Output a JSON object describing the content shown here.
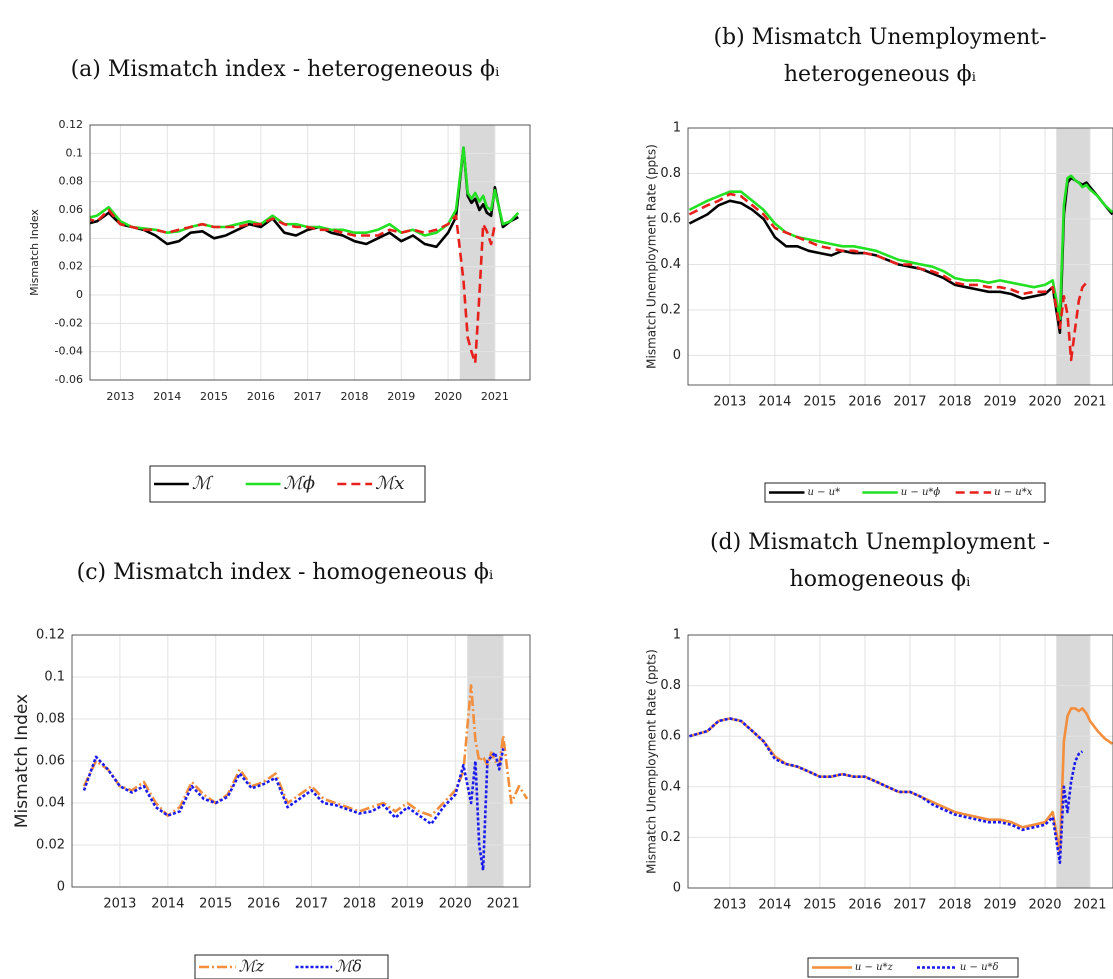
{
  "chart_data": [
    {
      "type": "line",
      "title": [
        "(a) Mismatch index - heterogeneous ϕᵢ"
      ],
      "y_label": "Mismatch Index",
      "x": [
        2012.25,
        2012.5,
        2012.75,
        2013,
        2013.25,
        2013.5,
        2013.75,
        2014,
        2014.25,
        2014.5,
        2014.75,
        2015,
        2015.25,
        2015.5,
        2015.75,
        2016,
        2016.25,
        2016.5,
        2016.75,
        2017,
        2017.25,
        2017.5,
        2017.75,
        2018,
        2018.25,
        2018.5,
        2018.75,
        2019,
        2019.25,
        2019.5,
        2019.75,
        2020,
        2020.17,
        2020.33,
        2020.42,
        2020.5,
        2020.58,
        2020.67,
        2020.75,
        2020.83,
        2020.92,
        2021,
        2021.17,
        2021.33,
        2021.5
      ],
      "xlim": [
        2012.35,
        2021.75
      ],
      "xticks": [
        2013,
        2014,
        2015,
        2016,
        2017,
        2018,
        2019,
        2020,
        2021
      ],
      "ylim": [
        -0.06,
        0.12
      ],
      "yticks": [
        -0.06,
        -0.04,
        -0.02,
        0,
        0.02,
        0.04,
        0.06,
        0.08,
        0.1,
        0.12
      ],
      "grid": true,
      "shaded_period": [
        2020.25,
        2021.0
      ],
      "series": [
        {
          "name": "ℳ",
          "color": "#000000",
          "dash": "solid",
          "values": [
            0.05,
            0.052,
            0.058,
            0.05,
            0.048,
            0.046,
            0.042,
            0.036,
            0.038,
            0.044,
            0.045,
            0.04,
            0.042,
            0.046,
            0.05,
            0.048,
            0.054,
            0.044,
            0.042,
            0.046,
            0.048,
            0.044,
            0.042,
            0.038,
            0.036,
            0.04,
            0.044,
            0.038,
            0.042,
            0.036,
            0.034,
            0.044,
            0.055,
            0.104,
            0.07,
            0.065,
            0.068,
            0.06,
            0.064,
            0.058,
            0.056,
            0.076,
            0.048,
            0.052,
            0.055
          ]
        },
        {
          "name": "ℳϕ",
          "color": "#22e022",
          "dash": "solid",
          "values": [
            0.054,
            0.056,
            0.062,
            0.052,
            0.048,
            0.047,
            0.046,
            0.044,
            0.045,
            0.048,
            0.05,
            0.048,
            0.048,
            0.05,
            0.052,
            0.05,
            0.056,
            0.05,
            0.05,
            0.048,
            0.048,
            0.046,
            0.046,
            0.044,
            0.044,
            0.046,
            0.05,
            0.044,
            0.046,
            0.042,
            0.044,
            0.05,
            0.06,
            0.104,
            0.072,
            0.068,
            0.072,
            0.066,
            0.07,
            0.062,
            0.06,
            0.074,
            0.05,
            0.052,
            0.058
          ]
        },
        {
          "name": "ℳx",
          "color": "#e8201c",
          "dash": "dashed",
          "values": [
            0.054,
            0.052,
            0.06,
            0.05,
            0.048,
            0.046,
            0.046,
            0.044,
            0.046,
            0.048,
            0.05,
            0.048,
            0.048,
            0.048,
            0.05,
            0.05,
            0.054,
            0.05,
            0.048,
            0.048,
            0.046,
            0.046,
            0.044,
            0.042,
            0.042,
            0.042,
            0.046,
            0.044,
            0.046,
            0.044,
            0.046,
            0.05,
            0.056,
            0.01,
            -0.03,
            -0.04,
            -0.048,
            0.0,
            0.05,
            0.045,
            0.036,
            0.05,
            null,
            null,
            null
          ]
        }
      ]
    },
    {
      "type": "line",
      "title": [
        "(b) Mismatch Unemployment-",
        "heterogeneous ϕᵢ"
      ],
      "y_label": "Mismatch Unemployment Rate (ppts)",
      "x": [
        2012.1,
        2012.5,
        2012.75,
        2013,
        2013.25,
        2013.5,
        2013.75,
        2014,
        2014.25,
        2014.5,
        2014.75,
        2015,
        2015.25,
        2015.5,
        2015.75,
        2016,
        2016.25,
        2016.5,
        2016.75,
        2017,
        2017.25,
        2017.5,
        2017.75,
        2018,
        2018.25,
        2018.5,
        2018.75,
        2019,
        2019.25,
        2019.5,
        2019.75,
        2020,
        2020.17,
        2020.33,
        2020.42,
        2020.5,
        2020.58,
        2020.67,
        2020.75,
        2020.83,
        2020.92,
        2021,
        2021.17,
        2021.33,
        2021.5
      ],
      "xlim": [
        2012.07,
        2021.51
      ],
      "xticks": [
        2013,
        2014,
        2015,
        2016,
        2017,
        2018,
        2019,
        2020,
        2021
      ],
      "ylim": [
        -0.13,
        1
      ],
      "yticks": [
        0,
        0.2,
        0.4,
        0.6,
        0.8,
        1
      ],
      "grid": true,
      "shaded_period": [
        2020.25,
        2021.0
      ],
      "series": [
        {
          "name": "u − u*",
          "color": "#000000",
          "dash": "solid",
          "values": [
            0.58,
            0.62,
            0.66,
            0.68,
            0.67,
            0.64,
            0.6,
            0.52,
            0.48,
            0.48,
            0.46,
            0.45,
            0.44,
            0.46,
            0.45,
            0.45,
            0.44,
            0.42,
            0.4,
            0.39,
            0.38,
            0.36,
            0.34,
            0.31,
            0.3,
            0.29,
            0.28,
            0.28,
            0.27,
            0.25,
            0.26,
            0.27,
            0.3,
            0.1,
            0.62,
            0.76,
            0.78,
            0.77,
            0.76,
            0.75,
            0.76,
            0.74,
            0.7,
            0.66,
            0.62
          ]
        },
        {
          "name": "u − u*ϕ",
          "color": "#22e022",
          "dash": "solid",
          "values": [
            0.64,
            0.68,
            0.7,
            0.72,
            0.72,
            0.68,
            0.64,
            0.58,
            0.54,
            0.52,
            0.51,
            0.5,
            0.49,
            0.48,
            0.48,
            0.47,
            0.46,
            0.44,
            0.42,
            0.41,
            0.4,
            0.39,
            0.37,
            0.34,
            0.33,
            0.33,
            0.32,
            0.33,
            0.32,
            0.31,
            0.3,
            0.31,
            0.33,
            0.16,
            0.66,
            0.78,
            0.79,
            0.77,
            0.76,
            0.74,
            0.75,
            0.73,
            0.7,
            0.66,
            0.63
          ]
        },
        {
          "name": "u − u*x",
          "color": "#e8201c",
          "dash": "dashed",
          "values": [
            0.62,
            0.66,
            0.68,
            0.71,
            0.7,
            0.66,
            0.62,
            0.56,
            0.54,
            0.52,
            0.5,
            0.48,
            0.47,
            0.46,
            0.46,
            0.45,
            0.44,
            0.42,
            0.4,
            0.4,
            0.38,
            0.37,
            0.35,
            0.32,
            0.31,
            0.31,
            0.3,
            0.3,
            0.29,
            0.27,
            0.28,
            0.28,
            0.3,
            0.12,
            0.26,
            0.18,
            -0.02,
            0.12,
            0.24,
            0.3,
            0.32,
            null,
            null,
            null,
            null
          ]
        }
      ]
    },
    {
      "type": "line",
      "title": [
        "(c) Mismatch index - homogeneous ϕᵢ"
      ],
      "y_label": "Mismatch Index",
      "x": [
        2012.25,
        2012.5,
        2012.75,
        2013,
        2013.25,
        2013.5,
        2013.75,
        2014,
        2014.25,
        2014.5,
        2014.75,
        2015,
        2015.25,
        2015.5,
        2015.75,
        2016,
        2016.25,
        2016.5,
        2016.75,
        2017,
        2017.25,
        2017.5,
        2017.75,
        2018,
        2018.25,
        2018.5,
        2018.75,
        2019,
        2019.25,
        2019.5,
        2019.75,
        2020,
        2020.17,
        2020.33,
        2020.42,
        2020.5,
        2020.58,
        2020.67,
        2020.75,
        2020.83,
        2020.92,
        2021,
        2021.17,
        2021.33,
        2021.5
      ],
      "xlim": [
        2012.0,
        2021.56
      ],
      "xticks": [
        2013,
        2014,
        2015,
        2016,
        2017,
        2018,
        2019,
        2020,
        2021
      ],
      "ylim": [
        0,
        0.12
      ],
      "yticks": [
        0,
        0.02,
        0.04,
        0.06,
        0.08,
        0.1,
        0.12
      ],
      "grid": true,
      "shaded_period": [
        2020.25,
        2021.0
      ],
      "series": [
        {
          "name": "ℳz",
          "color": "#f28e3c",
          "dash": "dashdot",
          "values": [
            0.048,
            0.06,
            0.056,
            0.048,
            0.046,
            0.05,
            0.04,
            0.034,
            0.038,
            0.05,
            0.044,
            0.04,
            0.044,
            0.056,
            0.048,
            0.05,
            0.054,
            0.04,
            0.044,
            0.048,
            0.042,
            0.04,
            0.038,
            0.036,
            0.038,
            0.04,
            0.036,
            0.04,
            0.036,
            0.034,
            0.04,
            0.046,
            0.055,
            0.096,
            0.07,
            0.06,
            0.062,
            0.058,
            0.064,
            0.06,
            0.058,
            0.072,
            0.04,
            0.048,
            0.042
          ]
        },
        {
          "name": "ℳδ",
          "color": "#1a1aee",
          "dash": "dotted",
          "values": [
            0.046,
            0.062,
            0.056,
            0.048,
            0.045,
            0.048,
            0.038,
            0.034,
            0.036,
            0.048,
            0.042,
            0.04,
            0.043,
            0.054,
            0.047,
            0.049,
            0.052,
            0.038,
            0.042,
            0.046,
            0.04,
            0.039,
            0.037,
            0.035,
            0.036,
            0.039,
            0.033,
            0.038,
            0.034,
            0.03,
            0.038,
            0.044,
            0.058,
            0.04,
            0.06,
            0.02,
            0.008,
            0.06,
            0.062,
            0.064,
            0.056,
            0.066,
            null,
            null,
            null
          ]
        }
      ]
    },
    {
      "type": "line",
      "title": [
        "(d) Mismatch Unemployment -",
        "homogeneous ϕᵢ"
      ],
      "y_label": "Mismatch Unemployment Rate (ppts)",
      "x": [
        2012.1,
        2012.5,
        2012.75,
        2013,
        2013.25,
        2013.5,
        2013.75,
        2014,
        2014.25,
        2014.5,
        2014.75,
        2015,
        2015.25,
        2015.5,
        2015.75,
        2016,
        2016.25,
        2016.5,
        2016.75,
        2017,
        2017.25,
        2017.5,
        2017.75,
        2018,
        2018.25,
        2018.5,
        2018.75,
        2019,
        2019.25,
        2019.5,
        2019.75,
        2020,
        2020.17,
        2020.33,
        2020.42,
        2020.5,
        2020.58,
        2020.67,
        2020.75,
        2020.83,
        2020.92,
        2021,
        2021.17,
        2021.33,
        2021.5
      ],
      "xlim": [
        2012.07,
        2021.51
      ],
      "xticks": [
        2013,
        2014,
        2015,
        2016,
        2017,
        2018,
        2019,
        2020,
        2021
      ],
      "ylim": [
        0,
        1
      ],
      "yticks": [
        0,
        0.2,
        0.4,
        0.6,
        0.8,
        1
      ],
      "grid": true,
      "shaded_period": [
        2020.25,
        2021.0
      ],
      "series": [
        {
          "name": "u − u*z",
          "color": "#f28e3c",
          "dash": "solid",
          "values": [
            0.6,
            0.62,
            0.66,
            0.67,
            0.66,
            0.62,
            0.58,
            0.52,
            0.49,
            0.48,
            0.46,
            0.44,
            0.44,
            0.45,
            0.44,
            0.44,
            0.42,
            0.4,
            0.38,
            0.38,
            0.36,
            0.34,
            0.32,
            0.3,
            0.29,
            0.28,
            0.27,
            0.27,
            0.26,
            0.24,
            0.25,
            0.26,
            0.3,
            0.14,
            0.58,
            0.68,
            0.71,
            0.71,
            0.7,
            0.71,
            0.69,
            0.66,
            0.62,
            0.59,
            0.57
          ]
        },
        {
          "name": "u − u*δ",
          "color": "#1a1aee",
          "dash": "dotted",
          "values": [
            0.6,
            0.62,
            0.66,
            0.67,
            0.66,
            0.62,
            0.58,
            0.51,
            0.49,
            0.48,
            0.46,
            0.44,
            0.44,
            0.45,
            0.44,
            0.44,
            0.42,
            0.4,
            0.38,
            0.38,
            0.36,
            0.33,
            0.31,
            0.29,
            0.28,
            0.27,
            0.26,
            0.26,
            0.25,
            0.23,
            0.24,
            0.25,
            0.28,
            0.1,
            0.4,
            0.3,
            0.42,
            0.5,
            0.53,
            0.54,
            null,
            null,
            null,
            null,
            null
          ]
        }
      ]
    }
  ]
}
